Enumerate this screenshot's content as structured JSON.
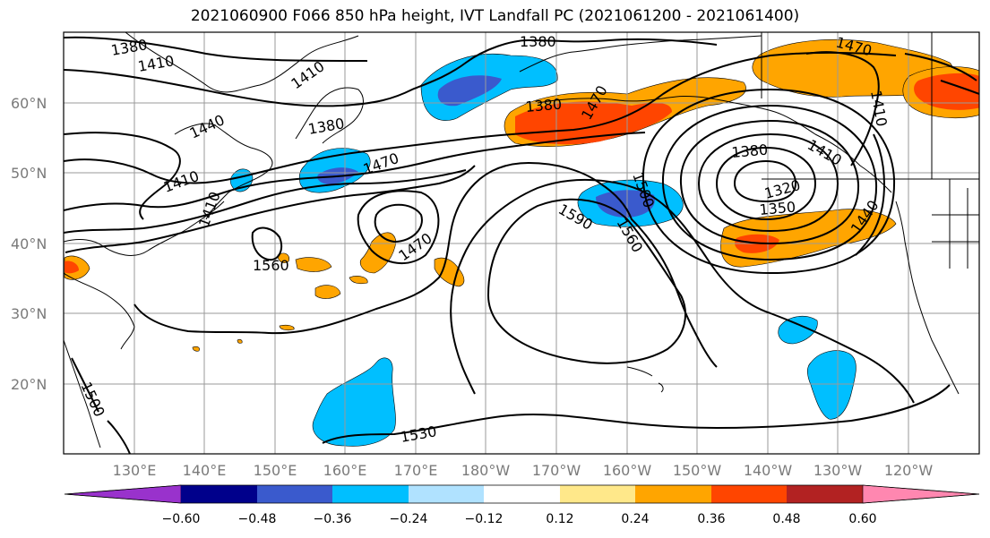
{
  "title": "2021060900 F066 850 hPa height, IVT Landfall PC (2021061200 - 2021061400)",
  "latitude_labels": [
    "60°N",
    "50°N",
    "40°N",
    "30°N",
    "20°N"
  ],
  "longitude_labels": [
    "130°E",
    "140°E",
    "150°E",
    "160°E",
    "170°E",
    "180°W",
    "170°W",
    "160°W",
    "150°W",
    "140°W",
    "130°W",
    "120°W"
  ],
  "contour_labels": [
    "1380",
    "1410",
    "1410",
    "1380",
    "1440",
    "1380",
    "1410",
    "1470",
    "1470",
    "1560",
    "1470",
    "1500",
    "1590",
    "1560",
    "1380",
    "1320",
    "1350",
    "1440",
    "1410",
    "1470",
    "1410",
    "1500",
    "1530",
    "1410",
    "1380"
  ],
  "colorbar": {
    "ticks": [
      "−0.60",
      "−0.48",
      "−0.36",
      "−0.24",
      "−0.12",
      "0.12",
      "0.24",
      "0.36",
      "0.48",
      "0.60"
    ],
    "colors": [
      "#9932cc",
      "#00008b",
      "#3a5acd",
      "#00bfff",
      "#b0e2ff",
      "#ffffff",
      "#ffe88a",
      "#ffa500",
      "#ff4500",
      "#b22222",
      "#ff87b0"
    ]
  }
}
